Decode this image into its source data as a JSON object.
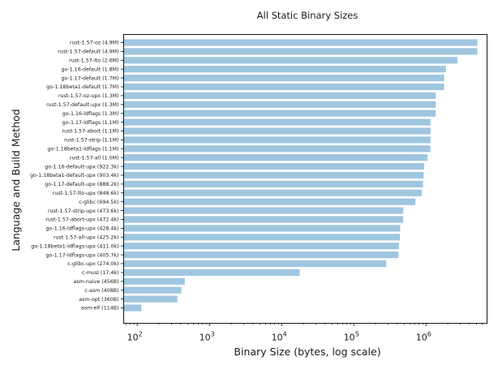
{
  "chart_data": {
    "type": "bar",
    "orientation": "horizontal",
    "title": "All Static Binary Sizes",
    "xlabel": "Binary Size (bytes, log scale)",
    "ylabel": "Language and Build Method",
    "x_scale": "log",
    "xlim": [
      65,
      7000000
    ],
    "x_ticks": [
      {
        "value": 100,
        "base": "10",
        "exp": "2"
      },
      {
        "value": 1000,
        "base": "10",
        "exp": "3"
      },
      {
        "value": 10000,
        "base": "10",
        "exp": "4"
      },
      {
        "value": 100000,
        "base": "10",
        "exp": "5"
      },
      {
        "value": 1000000,
        "base": "10",
        "exp": "6"
      }
    ],
    "grid": false,
    "bar_color": "#9fc6e0",
    "categories": [
      "rust-1.57-oz (4.9M)",
      "rust-1.57-default (4.9M)",
      "rust-1.57-lto (2.6M)",
      "go-1.16-default (1.8M)",
      "go-1.17-default (1.7M)",
      "go-1.18beta1-default (1.7M)",
      "rust-1.57-oz-upx (1.3M)",
      "rust-1.57-default-upx (1.3M)",
      "go-1.16-ldflags (1.3M)",
      "go-1.17-ldflags (1.1M)",
      "rust-1.57-abort (1.1M)",
      "rust-1.57-strip (1.1M)",
      "go-1.18beta1-ldflags (1.1M)",
      "rust-1.57-all (1.0M)",
      "go-1.16-default-upx (922.3k)",
      "go-1.18beta1-default-upx (903.4k)",
      "go-1.17-default-upx (888.2k)",
      "rust-1.57-lto-upx (848.6k)",
      "c-glibc (694.5k)",
      "rust-1.57-strip-upx (473.6k)",
      "rust-1.57-abort-upx (472.4k)",
      "go-1.16-ldflags-upx (428.4k)",
      "rust 1.57-all-upx (425.2k)",
      "go-1.18beta1-ldflags-upx (411.0k)",
      "go-1.17-ldflags-upx (405.7k)",
      "c-glibc-upx (274.0k)",
      "c-musl (17.4k)",
      "asm-naive (456B)",
      "c-asm (408B)",
      "asm-opt (360B)",
      "asm-elf (114B)"
    ],
    "values": [
      5138022,
      5138022,
      2726298,
      1887437,
      1782579,
      1782579,
      1363149,
      1363149,
      1363149,
      1153434,
      1153434,
      1153434,
      1153434,
      1048576,
      944435,
      925082,
      909517,
      868966,
      711168,
      484966,
      483738,
      438682,
      435405,
      420864,
      415437,
      280576,
      17818,
      456,
      408,
      360,
      114
    ]
  }
}
